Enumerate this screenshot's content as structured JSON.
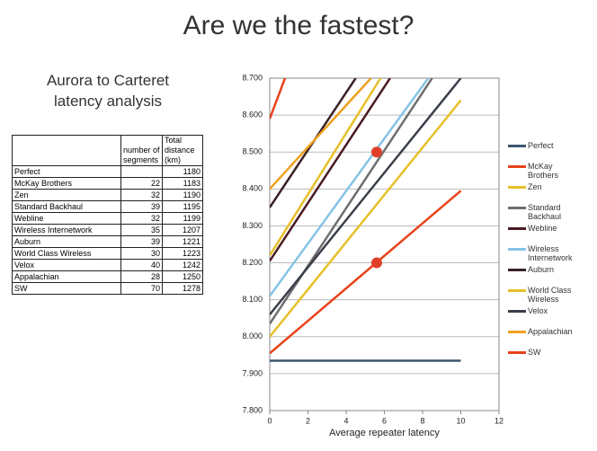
{
  "header": {
    "title": "Are we the fastest?",
    "subtitle": "Aurora to Carteret latency analysis"
  },
  "table": {
    "header": [
      "",
      "number of segments",
      "Total distance (km)"
    ],
    "rows": [
      [
        "Perfect",
        null,
        1180
      ],
      [
        "McKay Brothers",
        22,
        1183
      ],
      [
        "Zen",
        32,
        1190
      ],
      [
        "Standard Backhaul",
        39,
        1195
      ],
      [
        "Webline",
        32,
        1199
      ],
      [
        "Wireless Internetwork",
        35,
        1207
      ],
      [
        "Auburn",
        39,
        1221
      ],
      [
        "World Class Wireless",
        30,
        1223
      ],
      [
        "Velox",
        40,
        1242
      ],
      [
        "Appalachian",
        28,
        1250
      ],
      [
        "SW",
        70,
        1278
      ]
    ]
  },
  "chart_data": {
    "type": "line",
    "x_label": "Average repeater latency",
    "xlim": [
      0,
      12
    ],
    "xticks": [
      0,
      2,
      4,
      6,
      8,
      10,
      12
    ],
    "ylim": [
      7.8,
      8.7
    ],
    "yticks": [
      {
        "value": 7.8,
        "label": "7.800"
      },
      {
        "value": 7.9,
        "label": "7.900"
      },
      {
        "value": 8.0,
        "label": "8.000"
      },
      {
        "value": 8.1,
        "label": "8.100"
      },
      {
        "value": 8.2,
        "label": "8.200"
      },
      {
        "value": 8.3,
        "label": "8.300"
      },
      {
        "value": 8.4,
        "label": "8.400"
      },
      {
        "value": 8.5,
        "label": "8.500"
      },
      {
        "value": 8.6,
        "label": "8.600"
      },
      {
        "value": 8.7,
        "label": "8.700"
      }
    ],
    "grid": true,
    "series": [
      {
        "name": "Perfect",
        "color": "#3d5670",
        "x": [
          0,
          10
        ],
        "values": [
          7.935,
          7.935
        ]
      },
      {
        "name": "McKay Brothers",
        "color": "#e8431a",
        "x": [
          0,
          0.8
        ],
        "values": [
          8.59,
          8.7
        ]
      },
      {
        "name": "Zen",
        "color": "#e6c02a",
        "x": [
          0,
          5.8
        ],
        "values": [
          8.22,
          8.7
        ]
      },
      {
        "name": "Standard Backhaul",
        "color": "#6e6e6e",
        "x": [
          0,
          8.5
        ],
        "values": [
          8.035,
          8.7
        ]
      },
      {
        "name": "Webline",
        "color": "#4a1a22",
        "x": [
          0,
          6.3
        ],
        "values": [
          8.205,
          8.7
        ]
      },
      {
        "name": "Wireless Internetwork",
        "color": "#86c3e6",
        "x": [
          0,
          8.3
        ],
        "values": [
          8.11,
          8.7
        ]
      },
      {
        "name": "Auburn",
        "color": "#3a2226",
        "x": [
          0,
          4.5
        ],
        "values": [
          8.35,
          8.7
        ]
      },
      {
        "name": "World Class Wireless",
        "color": "#e6c02a",
        "x": [
          0,
          10
        ],
        "values": [
          8.0,
          8.64
        ]
      },
      {
        "name": "Velox",
        "color": "#3a3f4a",
        "x": [
          0,
          10
        ],
        "values": [
          8.06,
          8.7
        ]
      },
      {
        "name": "Appalachian",
        "color": "#f0a020",
        "x": [
          0,
          5.3
        ],
        "values": [
          8.4,
          8.7
        ]
      },
      {
        "name": "SW",
        "color": "#e8431a",
        "x": [
          0,
          10
        ],
        "values": [
          7.955,
          8.395
        ]
      }
    ],
    "points": {
      "color": "#e0402a",
      "x": [
        5.6,
        5.6
      ],
      "values": [
        8.5,
        8.2
      ]
    }
  }
}
